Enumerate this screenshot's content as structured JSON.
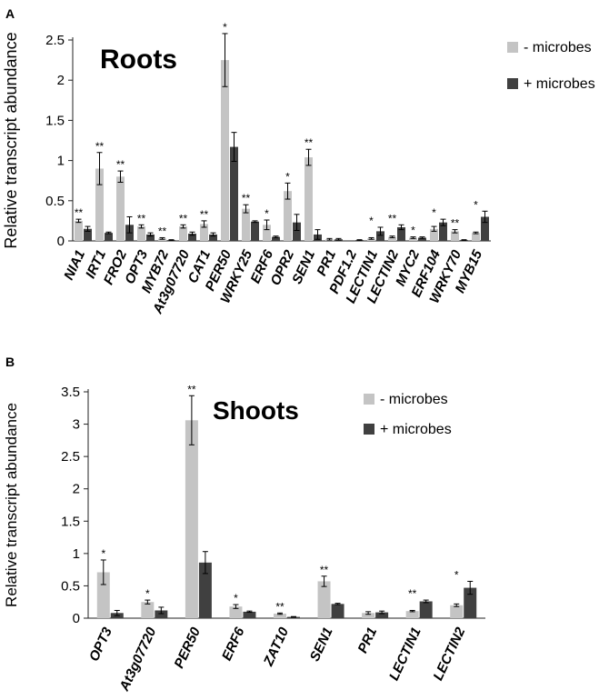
{
  "colors": {
    "minus": "#c4c4c4",
    "plus": "#404040",
    "axis": "#222222",
    "text": "#000000"
  },
  "chart_data": [
    {
      "panel": "A",
      "type": "bar",
      "title": "Roots",
      "ylabel": "Relative transcript abundance",
      "xlabel": "",
      "ylim": [
        0,
        2.5
      ],
      "yticks": [
        "0",
        "0.5",
        "1",
        "1.5",
        "2",
        "2.5"
      ],
      "grid": false,
      "legend": "top-right",
      "categories": [
        "NIA1",
        "IRT1",
        "FRO2",
        "OPT3",
        "MYB72",
        "At3g07720",
        "CAT1",
        "PER50",
        "WRKY25",
        "ERF6",
        "OPR2",
        "SEN1",
        "PR1",
        "PDF1.2",
        "LECTIN1",
        "LECTIN2",
        "MYC2",
        "ERF104",
        "WRKY70",
        "MYB15"
      ],
      "series": [
        {
          "name": "- microbes",
          "values": [
            0.25,
            0.9,
            0.8,
            0.18,
            0.03,
            0.18,
            0.21,
            2.25,
            0.4,
            0.2,
            0.62,
            1.04,
            0.02,
            0.0,
            0.03,
            0.05,
            0.04,
            0.15,
            0.12,
            0.1
          ],
          "errors": [
            0.02,
            0.2,
            0.07,
            0.02,
            0.01,
            0.02,
            0.04,
            0.33,
            0.05,
            0.06,
            0.1,
            0.1,
            0.01,
            0.0,
            0.01,
            0.01,
            0.01,
            0.03,
            0.02,
            0.01
          ]
        },
        {
          "name": "+ microbes",
          "values": [
            0.15,
            0.1,
            0.2,
            0.08,
            0.01,
            0.09,
            0.08,
            1.17,
            0.24,
            0.05,
            0.23,
            0.08,
            0.02,
            0.01,
            0.12,
            0.17,
            0.04,
            0.23,
            0.01,
            0.3
          ],
          "errors": [
            0.03,
            0.01,
            0.1,
            0.02,
            0.005,
            0.02,
            0.02,
            0.18,
            0.01,
            0.01,
            0.1,
            0.06,
            0.01,
            0.005,
            0.05,
            0.03,
            0.01,
            0.04,
            0.005,
            0.07
          ]
        }
      ],
      "annotations": [
        "**",
        "**",
        "**",
        "**",
        "**",
        "**",
        "**",
        "*",
        "**",
        "*",
        "*",
        "**",
        "",
        "",
        "*",
        "**",
        "*",
        "*",
        "**",
        "*"
      ]
    },
    {
      "panel": "B",
      "type": "bar",
      "title": "Shoots",
      "ylabel": "Relative transcript abundance",
      "xlabel": "",
      "ylim": [
        0,
        3.5
      ],
      "yticks": [
        "0",
        "0.5",
        "1",
        "1.5",
        "2",
        "2.5",
        "3",
        "3.5"
      ],
      "grid": false,
      "legend": "top-right",
      "categories": [
        "OPT3",
        "At3g07720",
        "PER50",
        "ERF6",
        "ZAT10",
        "SEN1",
        "PR1",
        "LECTIN1",
        "LECTIN2"
      ],
      "series": [
        {
          "name": "- microbes",
          "values": [
            0.71,
            0.25,
            3.06,
            0.18,
            0.07,
            0.57,
            0.08,
            0.11,
            0.2
          ],
          "errors": [
            0.19,
            0.03,
            0.38,
            0.03,
            0.01,
            0.08,
            0.02,
            0.01,
            0.02
          ]
        },
        {
          "name": "+ microbes",
          "values": [
            0.08,
            0.12,
            0.86,
            0.1,
            0.02,
            0.22,
            0.09,
            0.26,
            0.47
          ],
          "errors": [
            0.04,
            0.05,
            0.17,
            0.01,
            0.005,
            0.01,
            0.02,
            0.02,
            0.1
          ]
        }
      ],
      "annotations": [
        "*",
        "*",
        "**",
        "*",
        "**",
        "**",
        "",
        "**",
        "*"
      ]
    }
  ]
}
